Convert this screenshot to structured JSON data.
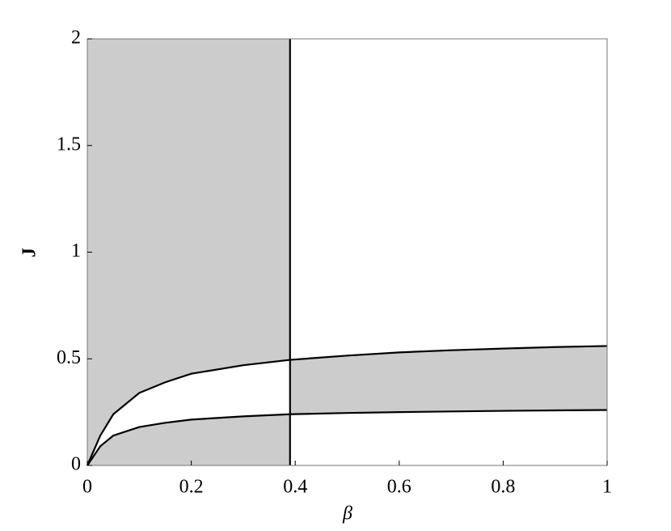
{
  "chart_data": {
    "type": "line",
    "x_label": "β",
    "y_label": "J",
    "x": [
      0,
      0.025,
      0.05,
      0.1,
      0.15,
      0.2,
      0.3,
      0.39,
      0.5,
      0.6,
      0.7,
      0.8,
      0.9,
      1
    ],
    "series": [
      {
        "color": "#000000",
        "values": [
          0,
          0.14,
          0.24,
          0.34,
          0.39,
          0.43,
          0.47,
          0.495,
          0.515,
          0.53,
          0.54,
          0.548,
          0.555,
          0.56
        ]
      },
      {
        "color": "#000000",
        "values": [
          0,
          0.09,
          0.14,
          0.18,
          0.2,
          0.215,
          0.23,
          0.24,
          0.246,
          0.25,
          0.253,
          0.256,
          0.258,
          0.26
        ]
      }
    ],
    "boundary_x": 0.39,
    "shade_color": "#cccccc",
    "xlim": [
      0,
      1
    ],
    "ylim": [
      0,
      2
    ],
    "xticks": [
      0,
      0.2,
      0.4,
      0.6,
      0.8,
      1
    ],
    "yticks": [
      0,
      0.5,
      1,
      1.5,
      2
    ]
  }
}
